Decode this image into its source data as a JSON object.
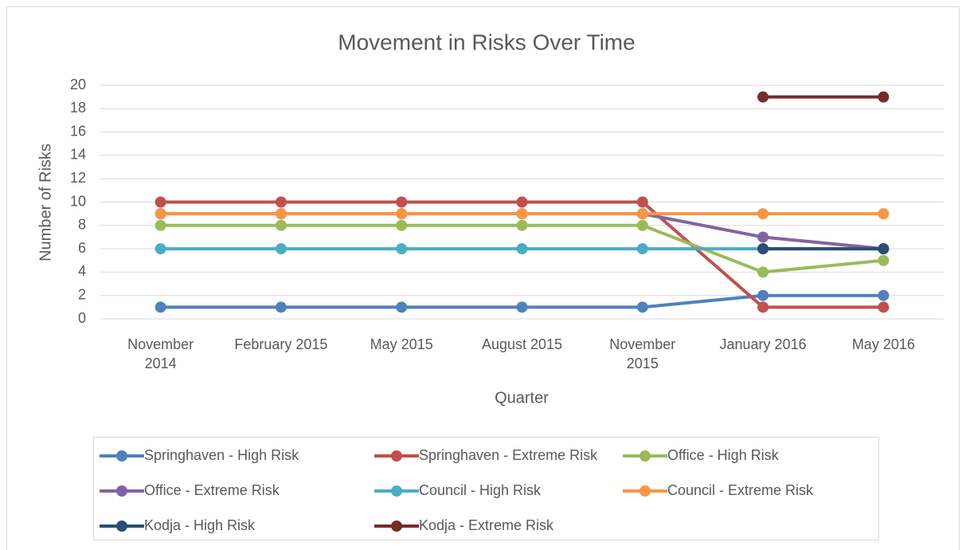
{
  "chart_data": {
    "type": "line",
    "title": "Movement in Risks Over Time",
    "x_label": "Quarter",
    "y_label": "Number of Risks",
    "categories": [
      "November 2014",
      "February 2015",
      "May 2015",
      "August 2015",
      "November 2015",
      "January 2016",
      "May 2016"
    ],
    "ylim": [
      0,
      20
    ],
    "yticks": [
      0,
      2,
      4,
      6,
      8,
      10,
      12,
      14,
      16,
      18,
      20
    ],
    "grid": true,
    "legend": "bottom",
    "series": [
      {
        "name": "Springhaven - High Risk",
        "color": "#4f81bd",
        "values": [
          1,
          1,
          1,
          1,
          1,
          2,
          2
        ]
      },
      {
        "name": "Springhaven - Extreme Risk",
        "color": "#c0504d",
        "values": [
          10,
          10,
          10,
          10,
          10,
          1,
          1
        ]
      },
      {
        "name": "Office - High Risk",
        "color": "#9bbb59",
        "values": [
          8,
          8,
          8,
          8,
          8,
          4,
          5
        ]
      },
      {
        "name": "Office - Extreme Risk",
        "color": "#8064a2",
        "values": [
          9,
          9,
          9,
          9,
          9,
          7,
          6
        ]
      },
      {
        "name": "Council - High Risk",
        "color": "#4bacc6",
        "values": [
          6,
          6,
          6,
          6,
          6,
          6,
          6
        ]
      },
      {
        "name": "Council - Extreme Risk",
        "color": "#f79646",
        "values": [
          9,
          9,
          9,
          9,
          9,
          9,
          9
        ]
      },
      {
        "name": "Kodja - High Risk",
        "color": "#2c4d75",
        "values": [
          null,
          null,
          null,
          null,
          null,
          6,
          6
        ]
      },
      {
        "name": "Kodja - Extreme Risk",
        "color": "#772c2a",
        "values": [
          null,
          null,
          null,
          null,
          null,
          19,
          19
        ]
      }
    ]
  }
}
